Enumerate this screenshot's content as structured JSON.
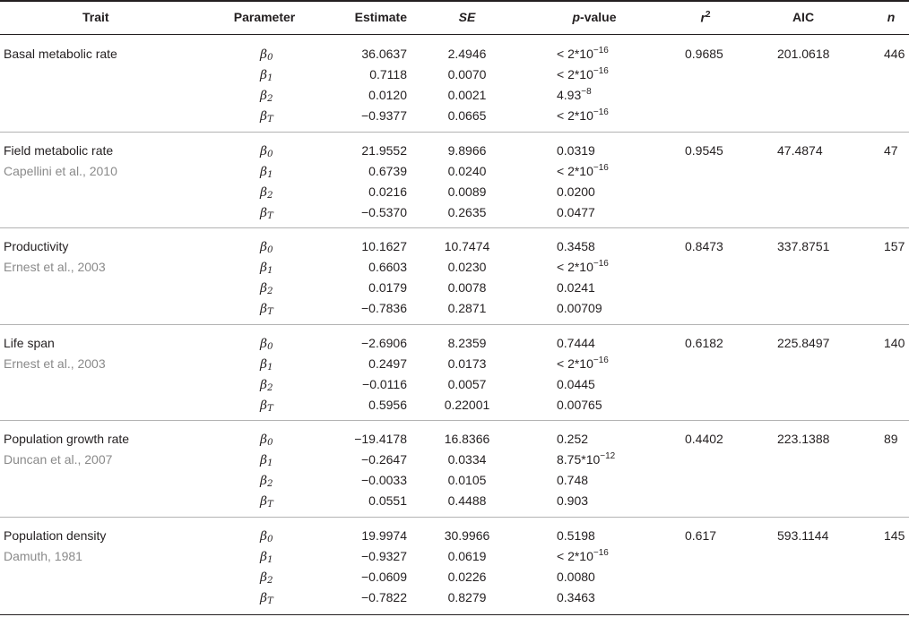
{
  "header": {
    "trait": "Trait",
    "parameter": "Parameter",
    "estimate": "Estimate",
    "se": "SE",
    "pvalue_italic": "p",
    "pvalue_rest": "-value",
    "r2_base": "r",
    "r2_sup": "2",
    "aic": "AIC",
    "n": "n"
  },
  "params": [
    {
      "sym": "β",
      "sub": "0"
    },
    {
      "sym": "β",
      "sub": "1"
    },
    {
      "sym": "β",
      "sub": "2"
    },
    {
      "sym": "β",
      "sub": "T"
    }
  ],
  "rows": [
    {
      "trait": "Basal metabolic rate",
      "citation": "",
      "r2": "0.9685",
      "aic": "201.0618",
      "n": "446",
      "estimates": [
        "36.0637",
        "0.7118",
        "0.0120",
        "−0.9377"
      ],
      "se": [
        "2.4946",
        "0.0070",
        "0.0021",
        "0.0665"
      ],
      "pvalues": [
        {
          "pre": "< 2*10",
          "exp": "−16"
        },
        {
          "pre": "< 2*10",
          "exp": "−16"
        },
        {
          "pre": "4.93",
          "exp": "−8"
        },
        {
          "pre": "< 2*10",
          "exp": "−16"
        }
      ]
    },
    {
      "trait": "Field metabolic rate",
      "citation": "Capellini et al., 2010",
      "r2": "0.9545",
      "aic": "47.4874",
      "n": "47",
      "estimates": [
        "21.9552",
        "0.6739",
        "0.0216",
        "−0.5370"
      ],
      "se": [
        "9.8966",
        "0.0240",
        "0.0089",
        "0.2635"
      ],
      "pvalues": [
        {
          "pre": "0.0319",
          "exp": ""
        },
        {
          "pre": "< 2*10",
          "exp": "−16"
        },
        {
          "pre": "0.0200",
          "exp": ""
        },
        {
          "pre": "0.0477",
          "exp": ""
        }
      ]
    },
    {
      "trait": "Productivity",
      "citation": "Ernest et al., 2003",
      "r2": "0.8473",
      "aic": "337.8751",
      "n": "157",
      "estimates": [
        "10.1627",
        "0.6603",
        "0.0179",
        "−0.7836"
      ],
      "se": [
        "10.7474",
        "0.0230",
        "0.0078",
        "0.2871"
      ],
      "pvalues": [
        {
          "pre": "0.3458",
          "exp": ""
        },
        {
          "pre": "< 2*10",
          "exp": "−16"
        },
        {
          "pre": "0.0241",
          "exp": ""
        },
        {
          "pre": "0.00709",
          "exp": ""
        }
      ]
    },
    {
      "trait": "Life span",
      "citation": "Ernest et al., 2003",
      "r2": "0.6182",
      "aic": "225.8497",
      "n": "140",
      "estimates": [
        "−2.6906",
        "0.2497",
        "−0.0116",
        "0.5956"
      ],
      "se": [
        "8.2359",
        "0.0173",
        "0.0057",
        "0.22001"
      ],
      "pvalues": [
        {
          "pre": "0.7444",
          "exp": ""
        },
        {
          "pre": "< 2*10",
          "exp": "−16"
        },
        {
          "pre": "0.0445",
          "exp": ""
        },
        {
          "pre": "0.00765",
          "exp": ""
        }
      ]
    },
    {
      "trait": "Population growth rate",
      "citation": "Duncan et al., 2007",
      "r2": "0.4402",
      "aic": "223.1388",
      "n": "89",
      "estimates": [
        "−19.4178",
        "−0.2647",
        "−0.0033",
        "0.0551"
      ],
      "se": [
        "16.8366",
        "0.0334",
        "0.0105",
        "0.4488"
      ],
      "pvalues": [
        {
          "pre": "0.252",
          "exp": ""
        },
        {
          "pre": "8.75*10",
          "exp": "−12"
        },
        {
          "pre": "0.748",
          "exp": ""
        },
        {
          "pre": "0.903",
          "exp": ""
        }
      ]
    },
    {
      "trait": "Population density",
      "citation": "Damuth, 1981",
      "r2": "0.617",
      "aic": "593.1144",
      "n": "145",
      "estimates": [
        "19.9974",
        "−0.9327",
        "−0.0609",
        "−0.7822"
      ],
      "se": [
        "30.9966",
        "0.0619",
        "0.0226",
        "0.8279"
      ],
      "pvalues": [
        {
          "pre": "0.5198",
          "exp": ""
        },
        {
          "pre": "< 2*10",
          "exp": "−16"
        },
        {
          "pre": "0.0080",
          "exp": ""
        },
        {
          "pre": "0.3463",
          "exp": ""
        }
      ]
    }
  ]
}
